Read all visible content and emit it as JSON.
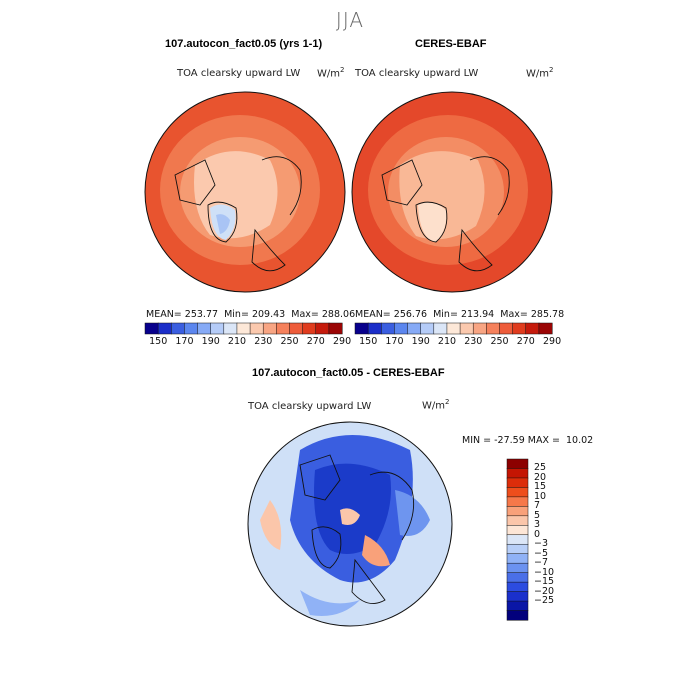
{
  "title": "JJA",
  "panels": [
    {
      "id": "model",
      "title": "107.autocon_fact0.05 (yrs 1-1)",
      "variable": "TOA clearsky upward LW",
      "unit": "W/m",
      "unit_exp": "2",
      "mean_label": "MEAN=",
      "mean": "253.77",
      "min_label": "Min=",
      "min": "209.43",
      "max_label": "Max=",
      "max": "288.06"
    },
    {
      "id": "obs",
      "title": "CERES-EBAF",
      "variable": "TOA clearsky upward LW",
      "unit": "W/m",
      "unit_exp": "2",
      "mean_label": "MEAN=",
      "mean": "256.76",
      "min_label": "Min=",
      "min": "213.94",
      "max_label": "Max=",
      "max": "285.78"
    }
  ],
  "top_colorbar": {
    "colors": [
      "#08008c",
      "#1b2ec9",
      "#3a5ee0",
      "#5b86ef",
      "#86aaf6",
      "#b5ccf8",
      "#dbe6f7",
      "#fde8d8",
      "#fbc9ae",
      "#f8a583",
      "#f5815c",
      "#ee5c3a",
      "#e03c1e",
      "#c51a0c",
      "#9a0404"
    ],
    "labels": [
      "150",
      "170",
      "190",
      "210",
      "230",
      "250",
      "270",
      "290"
    ]
  },
  "diff": {
    "title": "107.autocon_fact0.05 - CERES-EBAF",
    "variable": "TOA clearsky upward LW",
    "unit": "W/m",
    "unit_exp": "2",
    "min_label": "MIN =",
    "min": "-27.59",
    "max_label": "MAX =",
    "max": "10.02"
  },
  "diff_colorbar": {
    "colors": [
      "#8c0000",
      "#c41503",
      "#dc2d0a",
      "#ee4e1c",
      "#f6784a",
      "#f9a17a",
      "#fbc6aa",
      "#fde6d6",
      "#dbe6f7",
      "#b8cff8",
      "#90b2f6",
      "#6b92f0",
      "#4a6fe8",
      "#2c4ce0",
      "#1a30cc",
      "#0a16a6",
      "#02007c"
    ],
    "labels": [
      "25",
      "20",
      "15",
      "10",
      "7",
      "5",
      "3",
      "0",
      "−3",
      "−5",
      "−7",
      "−10",
      "−15",
      "−20",
      "−25"
    ]
  }
}
